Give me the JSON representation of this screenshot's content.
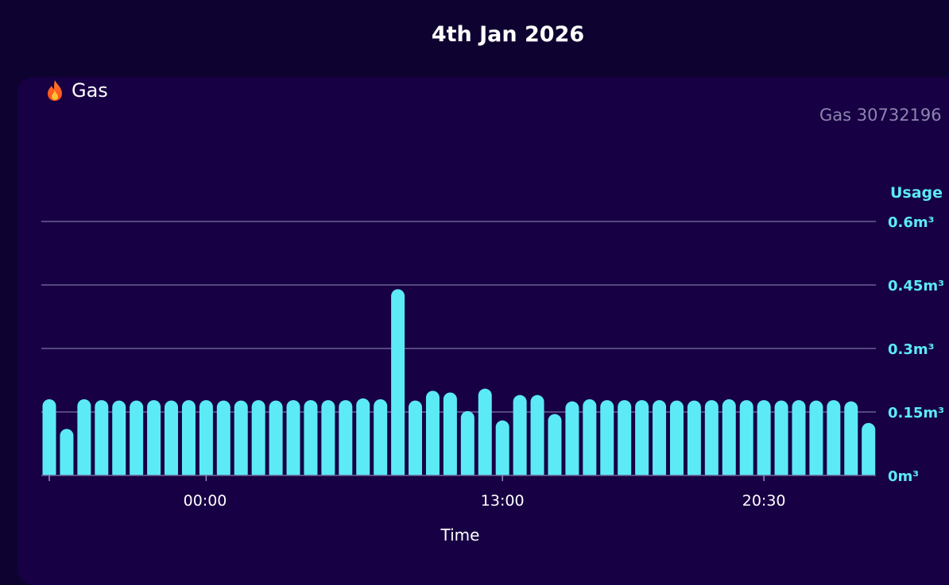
{
  "header": {
    "title": "4th Jan 2026"
  },
  "panel": {
    "title": "Gas",
    "icon": "flame-icon",
    "meter_label": "Gas 30732196"
  },
  "colors": {
    "page_background": "#0e0330",
    "card_background": "#170044",
    "bar": "#5ceaf7",
    "axis_text": "#5ceaf7",
    "gridline": "#6b5f93"
  },
  "chart_data": {
    "type": "bar",
    "title": "",
    "xlabel": "Time",
    "ylabel": "Usage",
    "unit": "m³",
    "ylim": [
      0,
      0.6
    ],
    "yticks": [
      {
        "value": 0,
        "label": "0m³"
      },
      {
        "value": 0.15,
        "label": "0.15m³"
      },
      {
        "value": 0.3,
        "label": "0.3m³"
      },
      {
        "value": 0.45,
        "label": "0.45m³"
      },
      {
        "value": 0.6,
        "label": "0.6m³"
      }
    ],
    "xticks": [
      {
        "index": 0,
        "label": ""
      },
      {
        "index": 9,
        "label": "00:00"
      },
      {
        "index": 26,
        "label": "13:00"
      },
      {
        "index": 41,
        "label": "20:30"
      }
    ],
    "grid": true,
    "legend": "none",
    "values": [
      0.18,
      0.11,
      0.18,
      0.178,
      0.177,
      0.177,
      0.178,
      0.177,
      0.178,
      0.178,
      0.177,
      0.177,
      0.178,
      0.177,
      0.178,
      0.178,
      0.178,
      0.178,
      0.182,
      0.18,
      0.44,
      0.177,
      0.2,
      0.196,
      0.152,
      0.205,
      0.13,
      0.19,
      0.19,
      0.145,
      0.175,
      0.18,
      0.178,
      0.178,
      0.178,
      0.178,
      0.177,
      0.177,
      0.178,
      0.18,
      0.178,
      0.178,
      0.177,
      0.178,
      0.177,
      0.178,
      0.175,
      0.124
    ]
  }
}
